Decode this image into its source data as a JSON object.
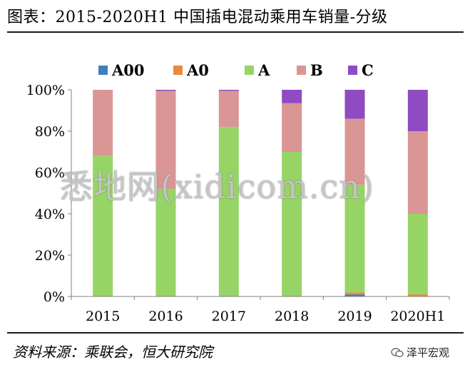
{
  "header": {
    "title": "图表：2015-2020H1 中国插电混动乘用车销量-分级"
  },
  "footer": {
    "source": "资料来源：乘联会，恒大研究院",
    "brand": "泽平宏观"
  },
  "watermark": {
    "text": "悉地网(xidicom.cn)"
  },
  "chart_data": {
    "type": "bar",
    "stacked": true,
    "categories": [
      "2015",
      "2016",
      "2017",
      "2018",
      "2019",
      "2020H1"
    ],
    "series": [
      {
        "name": "A00",
        "color": "#3f7fbf",
        "values": [
          0,
          0,
          0,
          0,
          1,
          0
        ]
      },
      {
        "name": "A0",
        "color": "#ed8a3a",
        "values": [
          0,
          0,
          0,
          0,
          1,
          1
        ]
      },
      {
        "name": "A",
        "color": "#97d466",
        "values": [
          68,
          52,
          82,
          70,
          52,
          39
        ]
      },
      {
        "name": "B",
        "color": "#da9694",
        "values": [
          32,
          47.5,
          17.5,
          23.5,
          32,
          40
        ]
      },
      {
        "name": "C",
        "color": "#8f4bc2",
        "values": [
          0,
          0.5,
          0.5,
          6.5,
          14,
          20
        ]
      }
    ],
    "y_ticks": [
      "0%",
      "20%",
      "40%",
      "60%",
      "80%",
      "100%"
    ],
    "ylim": [
      0,
      100
    ],
    "legend_position": "top",
    "grid": false
  }
}
